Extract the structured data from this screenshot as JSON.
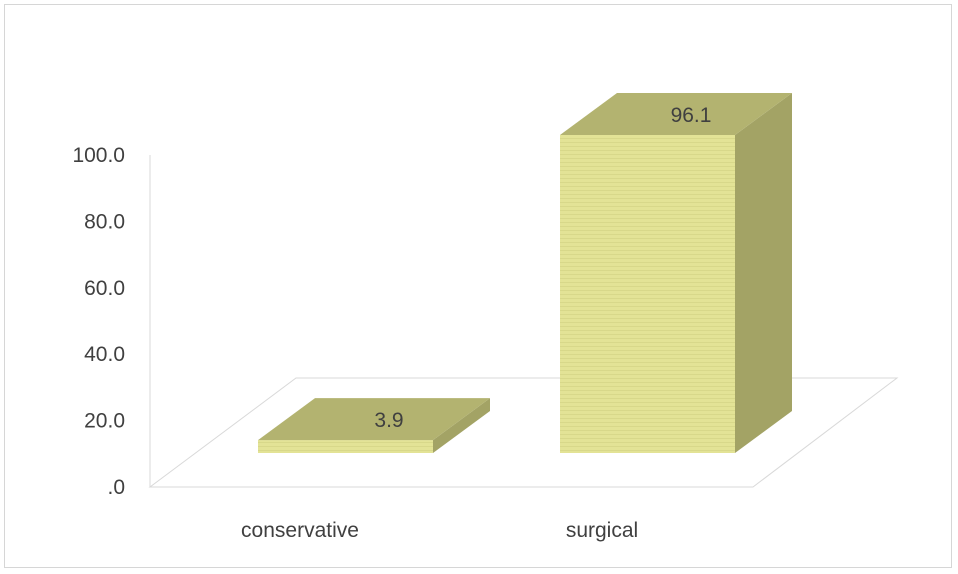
{
  "chart_data": {
    "type": "bar",
    "style": "3d-column",
    "categories": [
      "conservative",
      "surgical"
    ],
    "values": [
      3.9,
      96.1
    ],
    "data_labels": [
      "3.9",
      "96.1"
    ],
    "ylim": [
      0,
      100
    ],
    "yticks": [
      0,
      20,
      40,
      60,
      80,
      100
    ],
    "ytick_labels": [
      ".0",
      "20.0",
      "40.0",
      "60.0",
      "80.0",
      "100.0"
    ],
    "grid": false,
    "legend": "none",
    "colors": {
      "bar_front": "#e3e396",
      "bar_top": "#b3b370",
      "bar_side": "#a3a365",
      "axis": "#d9d9d9",
      "text": "#404040"
    }
  }
}
